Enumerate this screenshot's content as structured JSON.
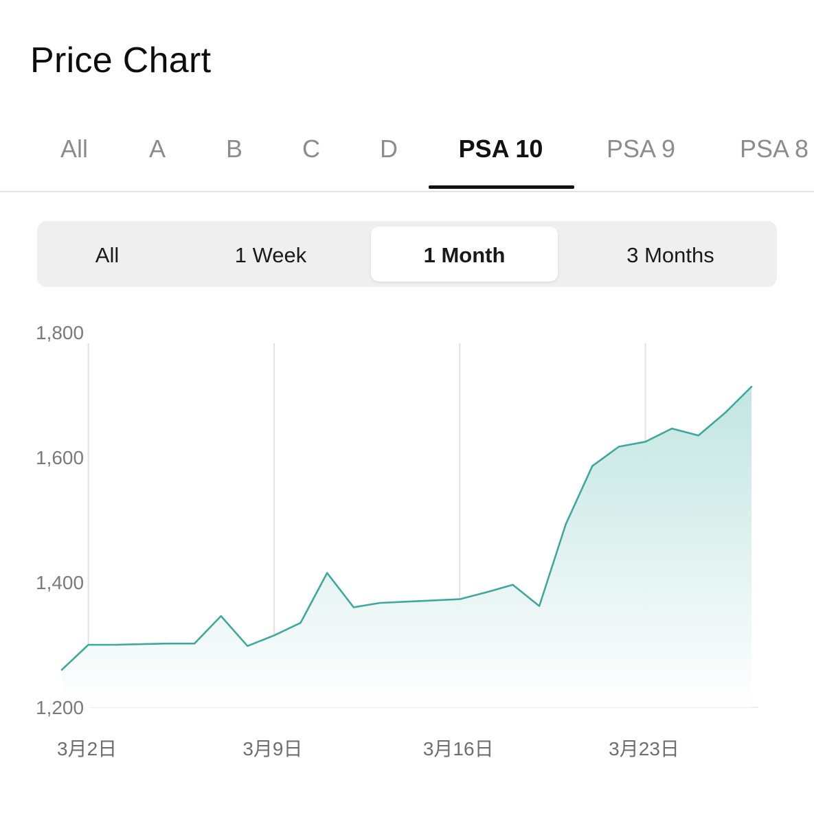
{
  "header": {
    "title": "Price Chart"
  },
  "grade_tabs": {
    "items": [
      {
        "label": "All"
      },
      {
        "label": "A"
      },
      {
        "label": "B"
      },
      {
        "label": "C"
      },
      {
        "label": "D"
      },
      {
        "label": "PSA 10"
      },
      {
        "label": "PSA 9"
      },
      {
        "label": "PSA 8"
      }
    ],
    "active": "PSA 10"
  },
  "range_selector": {
    "items": [
      {
        "label": "All"
      },
      {
        "label": "1 Week"
      },
      {
        "label": "1 Month"
      },
      {
        "label": "3 Months"
      }
    ],
    "active": "1 Month"
  },
  "colors": {
    "line": "#3fa89c",
    "fill_top": "#bfe4e0",
    "fill_bottom": "#ffffff",
    "grid": "#e2e2e2",
    "active_underline": "#111111"
  },
  "chart_data": {
    "type": "area",
    "ylim": [
      1200,
      1800
    ],
    "yticks": [
      1200,
      1400,
      1600,
      1800
    ],
    "ytick_labels": [
      "1,200",
      "1,400",
      "1,600",
      "1,800"
    ],
    "xticks": [
      "2024-03-02",
      "2024-03-09",
      "2024-03-16",
      "2024-03-23"
    ],
    "xtick_labels": [
      "3月2日",
      "3月9日",
      "3月16日",
      "3月23日"
    ],
    "xlim": [
      "2024-03-01",
      "2024-03-27"
    ],
    "grid": "vertical lines at x ticks",
    "series": [
      {
        "x": [
          "2024-03-01",
          "2024-03-02",
          "2024-03-03",
          "2024-03-04",
          "2024-03-05",
          "2024-03-06",
          "2024-03-07",
          "2024-03-08",
          "2024-03-09",
          "2024-03-10",
          "2024-03-11",
          "2024-03-12",
          "2024-03-13",
          "2024-03-14",
          "2024-03-15",
          "2024-03-16",
          "2024-03-17",
          "2024-03-18",
          "2024-03-19",
          "2024-03-20",
          "2024-03-21",
          "2024-03-22",
          "2024-03-23",
          "2024-03-24",
          "2024-03-25",
          "2024-03-26",
          "2024-03-27"
        ],
        "y": [
          1260,
          1300,
          1300,
          1301,
          1302,
          1302,
          1346,
          1298,
          1315,
          1335,
          1415,
          1360,
          1367,
          1369,
          1371,
          1373,
          1384,
          1396,
          1362,
          1493,
          1586,
          1617,
          1625,
          1646,
          1635,
          1671,
          1713
        ]
      }
    ]
  }
}
